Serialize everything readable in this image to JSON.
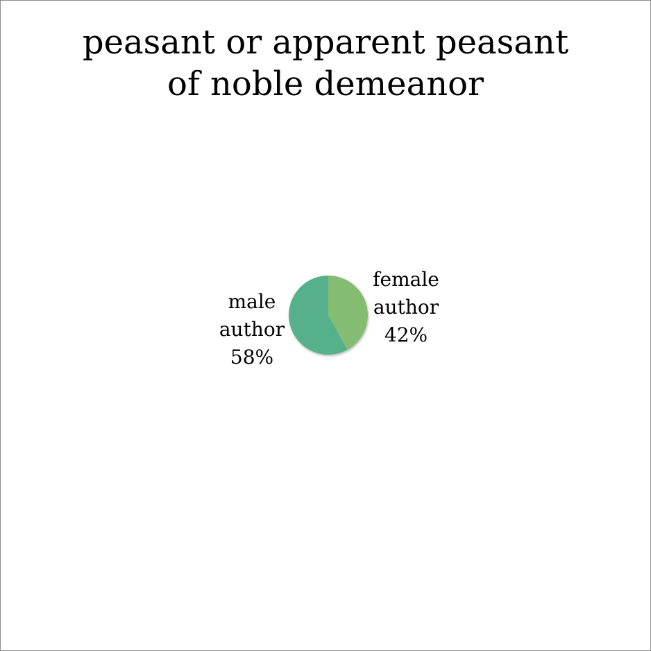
{
  "chart_data": {
    "type": "pie",
    "title": [
      "peasant or apparent peasant",
      "of noble demeanor"
    ],
    "slices": [
      {
        "label": [
          "female",
          "author"
        ],
        "value": 42,
        "value_label": "42%",
        "color": "#84bd72"
      },
      {
        "label": [
          "male",
          "author"
        ],
        "value": 58,
        "value_label": "58%",
        "color": "#56b08c"
      }
    ],
    "start_angle_deg": 0,
    "direction": "clockwise",
    "legend": "none",
    "data_labels": "outside"
  }
}
